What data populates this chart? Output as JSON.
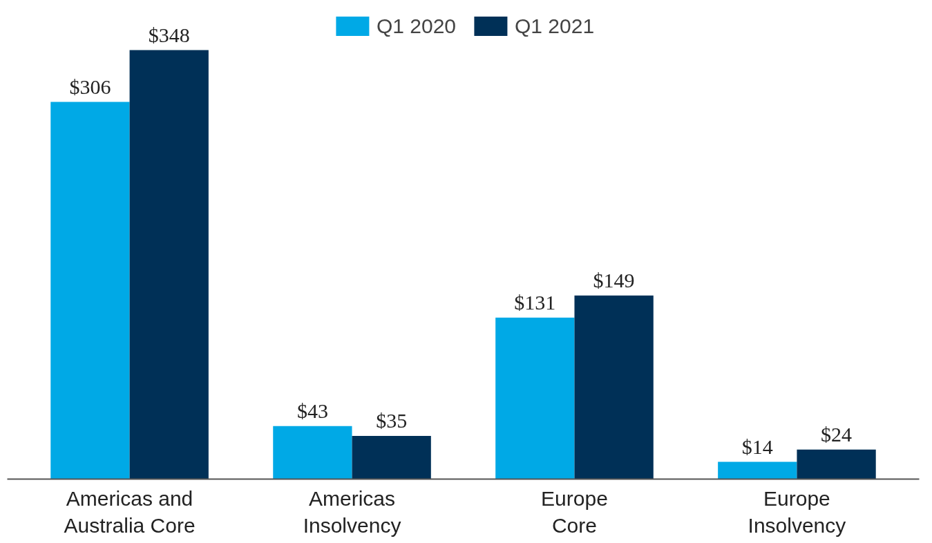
{
  "chart_data": {
    "type": "bar",
    "categories": [
      "Americas and Australia Core",
      "Americas Insolvency",
      "Europe Core",
      "Europe Insolvency"
    ],
    "series": [
      {
        "name": "Q1 2020",
        "color": "#00a9e6",
        "values": [
          306,
          43,
          131,
          14
        ],
        "value_labels": [
          "$306",
          "$43",
          "$131",
          "$14"
        ]
      },
      {
        "name": "Q1 2021",
        "color": "#003057",
        "values": [
          348,
          35,
          149,
          24
        ],
        "value_labels": [
          "$348",
          "$35",
          "$149",
          "$24"
        ]
      }
    ],
    "legend": "top",
    "grid": false
  }
}
